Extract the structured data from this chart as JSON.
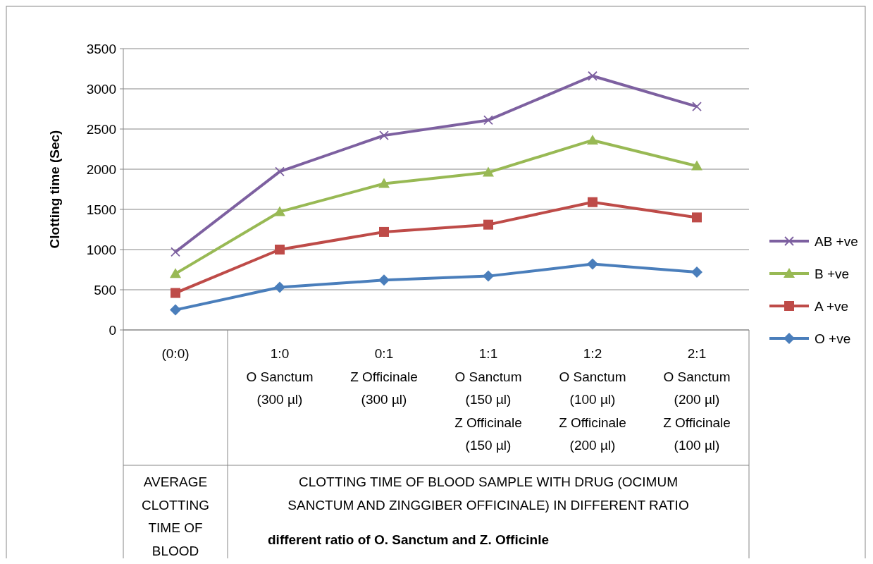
{
  "chart_data": {
    "type": "line",
    "ylabel": "Clotting time (Sec)",
    "categories": [
      "(0:0)",
      "1:0\nO Sanctum\n(300 µl)",
      "0:1\nZ Officinale\n(300 µl)",
      "1:1\nO Sanctum\n(150 µl)\nZ Officinale\n(150 µl)",
      "1:2\nO Sanctum\n(100 µl)\nZ Officinale\n(200 µl)",
      "2:1\nO Sanctum\n(200 µl)\nZ Officinale\n(100 µl)"
    ],
    "series": [
      {
        "name": "O +ve",
        "color": "#4a7ebb",
        "marker": "diamond",
        "values": [
          250,
          530,
          620,
          670,
          820,
          720
        ]
      },
      {
        "name": "A +ve",
        "color": "#be4b48",
        "marker": "square",
        "values": [
          460,
          1000,
          1220,
          1310,
          1590,
          1400
        ]
      },
      {
        "name": "B +ve",
        "color": "#98b954",
        "marker": "triangle",
        "values": [
          700,
          1470,
          1820,
          1960,
          2360,
          2040
        ]
      },
      {
        "name": "AB +ve",
        "color": "#7d60a0",
        "marker": "cross",
        "values": [
          970,
          1970,
          2420,
          2610,
          3160,
          2780
        ]
      }
    ],
    "ylim": [
      0,
      3500
    ],
    "yticks": [
      0,
      500,
      1000,
      1500,
      2000,
      2500,
      3000,
      3500
    ],
    "grid": "y",
    "legend": "right",
    "annotations": [
      "AVERAGE CLOTTING TIME OF BLOOD SAMPLES",
      "CLOTTING TIME OF BLOOD SAMPLE WITH DRUG (OCIMUM SANCTUM AND ZINGGIBER OFFICINALE) IN DIFFERENT RATIO",
      "different ratio of O. Sanctum and Z. Officinle"
    ]
  }
}
